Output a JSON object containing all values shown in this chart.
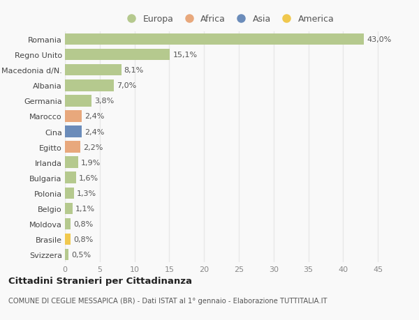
{
  "categories": [
    "Romania",
    "Regno Unito",
    "Macedonia d/N.",
    "Albania",
    "Germania",
    "Marocco",
    "Cina",
    "Egitto",
    "Irlanda",
    "Bulgaria",
    "Polonia",
    "Belgio",
    "Moldova",
    "Brasile",
    "Svizzera"
  ],
  "values": [
    43.0,
    15.1,
    8.1,
    7.0,
    3.8,
    2.4,
    2.4,
    2.2,
    1.9,
    1.6,
    1.3,
    1.1,
    0.8,
    0.8,
    0.5
  ],
  "labels": [
    "43,0%",
    "15,1%",
    "8,1%",
    "7,0%",
    "3,8%",
    "2,4%",
    "2,4%",
    "2,2%",
    "1,9%",
    "1,6%",
    "1,3%",
    "1,1%",
    "0,8%",
    "0,8%",
    "0,5%"
  ],
  "continents": [
    "Europa",
    "Europa",
    "Europa",
    "Europa",
    "Europa",
    "Africa",
    "Asia",
    "Africa",
    "Europa",
    "Europa",
    "Europa",
    "Europa",
    "Europa",
    "America",
    "Europa"
  ],
  "continent_colors": {
    "Europa": "#b5c98e",
    "Africa": "#e8a87c",
    "Asia": "#6b8cba",
    "America": "#f0c84e"
  },
  "legend_order": [
    "Europa",
    "Africa",
    "Asia",
    "America"
  ],
  "title": "Cittadini Stranieri per Cittadinanza",
  "subtitle": "COMUNE DI CEGLIE MESSAPICA (BR) - Dati ISTAT al 1° gennaio - Elaborazione TUTTITALIA.IT",
  "xlim": [
    0,
    47
  ],
  "xticks": [
    0,
    5,
    10,
    15,
    20,
    25,
    30,
    35,
    40,
    45
  ],
  "background_color": "#f9f9f9",
  "grid_color": "#e8e8e8",
  "bar_height": 0.75,
  "label_fontsize": 8,
  "ytick_fontsize": 8,
  "xtick_fontsize": 8
}
